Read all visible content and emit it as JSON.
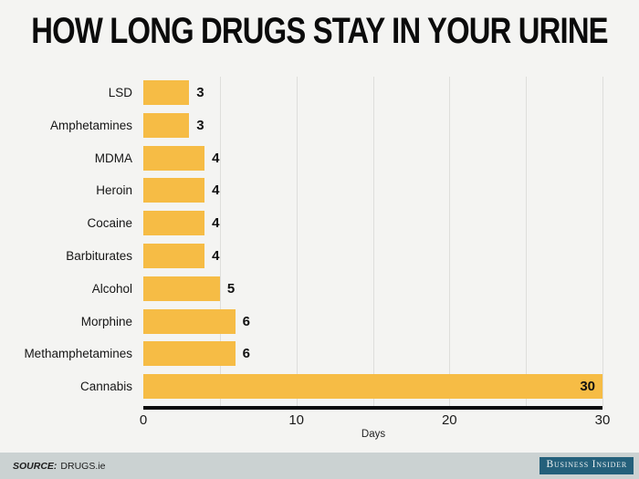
{
  "title": "HOW LONG DRUGS STAY IN YOUR URINE",
  "chart_data": {
    "type": "bar",
    "orientation": "horizontal",
    "title": "HOW LONG DRUGS STAY IN YOUR URINE",
    "categories": [
      "LSD",
      "Amphetamines",
      "MDMA",
      "Heroin",
      "Cocaine",
      "Barbiturates",
      "Alcohol",
      "Morphine",
      "Methamphetamines",
      "Cannabis"
    ],
    "values": [
      3,
      3,
      4,
      4,
      4,
      4,
      5,
      6,
      6,
      30
    ],
    "unit": "days",
    "xlabel": "Days",
    "xlim": [
      0,
      30
    ],
    "xticks": [
      0,
      10,
      20,
      30
    ],
    "grid_interval": 5,
    "grid": true,
    "value_labels": true,
    "legend": false
  },
  "footer": {
    "source_prefix": "SOURCE:",
    "source_value": "DRUGS.ie",
    "brand": "Business Insider"
  },
  "colors": {
    "background": "#F4F4F2",
    "bar": "#F6BC45",
    "gridline": "#DEDEDB",
    "axis_line": "#0A0A0A",
    "text": "#111111",
    "footer_background": "#CBD2D2",
    "brand_badge_background": "#24607B",
    "brand_badge_text": "#EDF1F1"
  }
}
